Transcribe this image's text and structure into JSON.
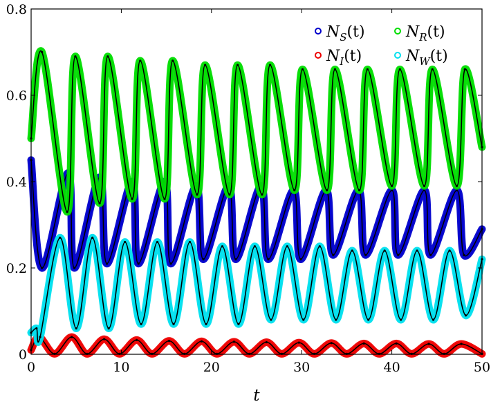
{
  "chart_data": {
    "type": "line",
    "xlabel": "t",
    "ylabel": "",
    "title": "",
    "xlim": [
      0,
      50
    ],
    "ylim": [
      0,
      0.8
    ],
    "x_ticks": [
      "0",
      "10",
      "20",
      "30",
      "40",
      "50"
    ],
    "y_ticks": [
      "0",
      "0.2",
      "0.4",
      "0.6",
      "0.8"
    ],
    "grid": false,
    "legend_position": "top-right",
    "markers": "open circles (data) with solid black fitted curve",
    "series": [
      {
        "name": "N_S(t)",
        "legend": {
          "base": "N",
          "sub": "S",
          "arg": "(t)"
        },
        "color": "#0000cc",
        "x": [
          0.0,
          1.2,
          4.1,
          4.8,
          7.6,
          8.4,
          11.2,
          11.9,
          14.8,
          15.5,
          18.3,
          19.1,
          21.9,
          22.7,
          25.5,
          26.3,
          29.1,
          29.9,
          32.7,
          33.5,
          36.3,
          37.1,
          40.0,
          40.7,
          43.6,
          44.3,
          47.2,
          48.0,
          50.0
        ],
        "values": [
          0.45,
          0.2,
          0.42,
          0.2,
          0.41,
          0.21,
          0.4,
          0.21,
          0.4,
          0.21,
          0.39,
          0.22,
          0.39,
          0.22,
          0.39,
          0.22,
          0.38,
          0.22,
          0.38,
          0.23,
          0.38,
          0.23,
          0.38,
          0.23,
          0.38,
          0.23,
          0.38,
          0.23,
          0.29
        ]
      },
      {
        "name": "N_R(t)",
        "legend": {
          "base": "N",
          "sub": "R",
          "arg": "(t)"
        },
        "color": "#00dd00",
        "x": [
          0.0,
          1.2,
          4.0,
          4.9,
          7.6,
          8.5,
          11.2,
          12.1,
          14.8,
          15.7,
          18.4,
          19.3,
          22.0,
          22.9,
          25.6,
          26.5,
          29.2,
          30.1,
          32.8,
          33.7,
          36.4,
          37.3,
          40.0,
          40.9,
          43.6,
          44.5,
          47.2,
          48.1,
          50.0
        ],
        "values": [
          0.5,
          0.7,
          0.33,
          0.69,
          0.35,
          0.69,
          0.36,
          0.68,
          0.36,
          0.68,
          0.37,
          0.67,
          0.37,
          0.67,
          0.37,
          0.67,
          0.38,
          0.66,
          0.38,
          0.66,
          0.38,
          0.66,
          0.39,
          0.66,
          0.39,
          0.66,
          0.39,
          0.66,
          0.48
        ]
      },
      {
        "name": "N_I(t)",
        "legend": {
          "base": "N",
          "sub": "I",
          "arg": "(t)"
        },
        "color": "#ee0000",
        "x": [
          0.0,
          0.9,
          2.6,
          4.5,
          6.2,
          8.1,
          9.8,
          11.7,
          13.4,
          15.3,
          17.0,
          18.9,
          20.6,
          22.5,
          24.2,
          26.1,
          27.8,
          29.7,
          31.4,
          33.3,
          35.0,
          36.9,
          38.6,
          40.5,
          42.2,
          44.1,
          45.8,
          47.7,
          50.0
        ],
        "values": [
          0.01,
          0.04,
          0.001,
          0.04,
          0.001,
          0.035,
          0.001,
          0.033,
          0.001,
          0.031,
          0.001,
          0.03,
          0.001,
          0.029,
          0.001,
          0.028,
          0.001,
          0.027,
          0.001,
          0.026,
          0.001,
          0.025,
          0.001,
          0.025,
          0.001,
          0.024,
          0.001,
          0.024,
          0.001
        ]
      },
      {
        "name": "N_W(t)",
        "legend": {
          "base": "N",
          "sub": "W",
          "arg": "(t)"
        },
        "color": "#00e0ee",
        "x": [
          0.0,
          0.6,
          1.0,
          3.2,
          5.0,
          6.8,
          8.6,
          10.4,
          12.2,
          14.0,
          15.8,
          17.6,
          19.4,
          21.2,
          23.0,
          24.8,
          26.6,
          28.4,
          30.2,
          32.0,
          33.8,
          35.6,
          37.4,
          39.2,
          41.0,
          42.8,
          44.6,
          46.4,
          48.2,
          50.0
        ],
        "values": [
          0.05,
          0.06,
          0.04,
          0.27,
          0.06,
          0.27,
          0.06,
          0.26,
          0.07,
          0.26,
          0.07,
          0.26,
          0.07,
          0.25,
          0.07,
          0.25,
          0.08,
          0.25,
          0.08,
          0.25,
          0.08,
          0.24,
          0.08,
          0.24,
          0.08,
          0.24,
          0.08,
          0.24,
          0.09,
          0.22
        ]
      }
    ]
  }
}
